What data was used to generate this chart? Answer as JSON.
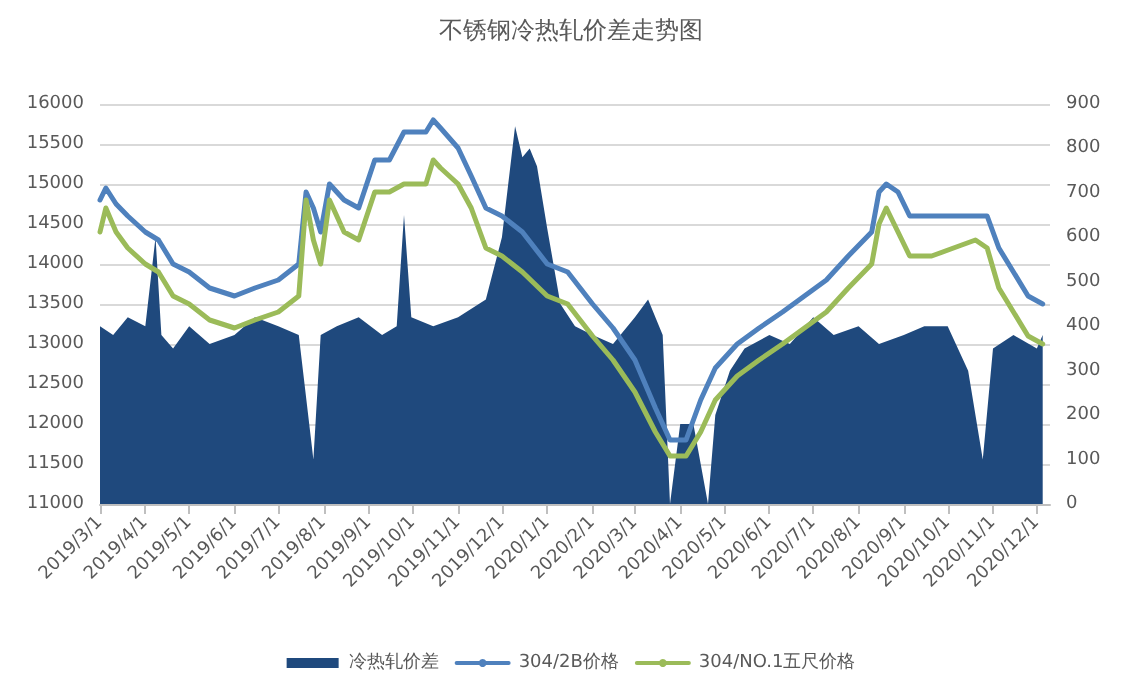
{
  "chart_data": {
    "type": "line",
    "title": "不锈钢冷热轧价差走势图",
    "xlim": [
      "2019-03-01",
      "2020-12-10"
    ],
    "xticks": [
      {
        "value": "2019-03-01",
        "label": "2019/3/1"
      },
      {
        "value": "2019-04-01",
        "label": "2019/4/1"
      },
      {
        "value": "2019-05-01",
        "label": "2019/5/1"
      },
      {
        "value": "2019-06-01",
        "label": "2019/6/1"
      },
      {
        "value": "2019-07-01",
        "label": "2019/7/1"
      },
      {
        "value": "2019-08-01",
        "label": "2019/8/1"
      },
      {
        "value": "2019-09-01",
        "label": "2019/9/1"
      },
      {
        "value": "2019-10-01",
        "label": "2019/10/1"
      },
      {
        "value": "2019-11-01",
        "label": "2019/11/1"
      },
      {
        "value": "2019-12-01",
        "label": "2019/12/1"
      },
      {
        "value": "2020-01-01",
        "label": "2020/1/1"
      },
      {
        "value": "2020-02-01",
        "label": "2020/2/1"
      },
      {
        "value": "2020-03-01",
        "label": "2020/3/1"
      },
      {
        "value": "2020-04-01",
        "label": "2020/4/1"
      },
      {
        "value": "2020-05-01",
        "label": "2020/5/1"
      },
      {
        "value": "2020-06-01",
        "label": "2020/6/1"
      },
      {
        "value": "2020-07-01",
        "label": "2020/7/1"
      },
      {
        "value": "2020-08-01",
        "label": "2020/8/1"
      },
      {
        "value": "2020-09-01",
        "label": "2020/9/1"
      },
      {
        "value": "2020-10-01",
        "label": "2020/10/1"
      },
      {
        "value": "2020-11-01",
        "label": "2020/11/1"
      },
      {
        "value": "2020-12-01",
        "label": "2020/12/1"
      }
    ],
    "ylim": [
      11000,
      16000
    ],
    "yticks": [
      11000,
      11500,
      12000,
      12500,
      13000,
      13500,
      14000,
      14500,
      15000,
      15500,
      16000
    ],
    "y2lim": [
      0,
      900
    ],
    "y2ticks": [
      0,
      100,
      200,
      300,
      400,
      500,
      600,
      700,
      800,
      900
    ],
    "grid": "y",
    "legend": "bottom",
    "marker": "none",
    "line_style": "solid",
    "series": [
      {
        "name": "冷热轧价差",
        "type": "area",
        "axis": "y2",
        "color": "#1f497d",
        "x": [
          "2019-03-01",
          "2019-03-10",
          "2019-03-20",
          "2019-04-01",
          "2019-04-08",
          "2019-04-12",
          "2019-04-20",
          "2019-05-01",
          "2019-05-15",
          "2019-06-01",
          "2019-06-15",
          "2019-07-01",
          "2019-07-15",
          "2019-07-25",
          "2019-07-30",
          "2019-08-10",
          "2019-08-25",
          "2019-09-10",
          "2019-09-20",
          "2019-09-25",
          "2019-09-30",
          "2019-10-15",
          "2019-11-01",
          "2019-11-20",
          "2019-12-01",
          "2019-12-10",
          "2019-12-15",
          "2019-12-20",
          "2019-12-25",
          "2020-01-01",
          "2020-01-10",
          "2020-01-20",
          "2020-02-01",
          "2020-02-15",
          "2020-03-01",
          "2020-03-10",
          "2020-03-20",
          "2020-03-25",
          "2020-04-01",
          "2020-04-10",
          "2020-04-20",
          "2020-04-25",
          "2020-05-05",
          "2020-05-15",
          "2020-06-01",
          "2020-06-15",
          "2020-07-01",
          "2020-07-15",
          "2020-08-01",
          "2020-08-15",
          "2020-09-01",
          "2020-09-15",
          "2020-10-01",
          "2020-10-15",
          "2020-10-25",
          "2020-11-01",
          "2020-11-15",
          "2020-12-01",
          "2020-12-05"
        ],
        "values": [
          400,
          380,
          420,
          400,
          600,
          380,
          350,
          400,
          360,
          380,
          420,
          400,
          380,
          100,
          380,
          400,
          420,
          380,
          400,
          650,
          420,
          400,
          420,
          460,
          600,
          850,
          780,
          800,
          760,
          620,
          450,
          400,
          380,
          360,
          420,
          460,
          380,
          0,
          180,
          180,
          0,
          200,
          300,
          350,
          380,
          360,
          420,
          380,
          400,
          360,
          380,
          400,
          400,
          300,
          100,
          350,
          380,
          350,
          380
        ]
      },
      {
        "name": "304/2B价格",
        "color": "#4f81bd",
        "x": [
          "2019-03-01",
          "2019-03-05",
          "2019-03-12",
          "2019-03-20",
          "2019-04-01",
          "2019-04-10",
          "2019-04-20",
          "2019-05-01",
          "2019-05-15",
          "2019-06-01",
          "2019-06-15",
          "2019-07-01",
          "2019-07-15",
          "2019-07-20",
          "2019-07-25",
          "2019-07-30",
          "2019-08-05",
          "2019-08-15",
          "2019-08-25",
          "2019-09-05",
          "2019-09-15",
          "2019-09-25",
          "2019-10-10",
          "2019-10-15",
          "2019-10-20",
          "2019-11-01",
          "2019-11-10",
          "2019-11-20",
          "2019-12-01",
          "2019-12-15",
          "2020-01-01",
          "2020-01-15",
          "2020-02-01",
          "2020-02-15",
          "2020-03-01",
          "2020-03-15",
          "2020-03-25",
          "2020-04-05",
          "2020-04-15",
          "2020-04-25",
          "2020-05-10",
          "2020-05-25",
          "2020-06-10",
          "2020-06-25",
          "2020-07-10",
          "2020-07-25",
          "2020-08-10",
          "2020-08-15",
          "2020-08-20",
          "2020-08-28",
          "2020-09-05",
          "2020-09-20",
          "2020-10-05",
          "2020-10-20",
          "2020-10-28",
          "2020-11-05",
          "2020-11-15",
          "2020-11-25",
          "2020-12-05"
        ],
        "values": [
          14800,
          14950,
          14750,
          14600,
          14400,
          14300,
          14000,
          13900,
          13700,
          13600,
          13700,
          13800,
          14000,
          14900,
          14700,
          14400,
          15000,
          14800,
          14700,
          15300,
          15300,
          15650,
          15650,
          15800,
          15700,
          15450,
          15100,
          14700,
          14600,
          14400,
          14000,
          13900,
          13500,
          13200,
          12800,
          12200,
          11800,
          11800,
          12300,
          12700,
          13000,
          13200,
          13400,
          13600,
          13800,
          14100,
          14400,
          14900,
          15000,
          14900,
          14600,
          14600,
          14600,
          14600,
          14600,
          14200,
          13900,
          13600,
          13500
        ]
      },
      {
        "name": "304/NO.1五尺价格",
        "color": "#9bbb59",
        "x": [
          "2019-03-01",
          "2019-03-05",
          "2019-03-12",
          "2019-03-20",
          "2019-04-01",
          "2019-04-10",
          "2019-04-20",
          "2019-05-01",
          "2019-05-15",
          "2019-06-01",
          "2019-06-15",
          "2019-07-01",
          "2019-07-15",
          "2019-07-20",
          "2019-07-25",
          "2019-07-30",
          "2019-08-05",
          "2019-08-15",
          "2019-08-25",
          "2019-09-05",
          "2019-09-15",
          "2019-09-25",
          "2019-10-10",
          "2019-10-15",
          "2019-10-20",
          "2019-11-01",
          "2019-11-10",
          "2019-11-20",
          "2019-12-01",
          "2019-12-15",
          "2020-01-01",
          "2020-01-15",
          "2020-02-01",
          "2020-02-15",
          "2020-03-01",
          "2020-03-15",
          "2020-03-25",
          "2020-04-05",
          "2020-04-15",
          "2020-04-25",
          "2020-05-10",
          "2020-05-25",
          "2020-06-10",
          "2020-06-25",
          "2020-07-10",
          "2020-07-25",
          "2020-08-10",
          "2020-08-15",
          "2020-08-20",
          "2020-08-28",
          "2020-09-05",
          "2020-09-20",
          "2020-10-05",
          "2020-10-20",
          "2020-10-28",
          "2020-11-05",
          "2020-11-15",
          "2020-11-25",
          "2020-12-05"
        ],
        "values": [
          14400,
          14700,
          14400,
          14200,
          14000,
          13900,
          13600,
          13500,
          13300,
          13200,
          13300,
          13400,
          13600,
          14800,
          14300,
          14000,
          14800,
          14400,
          14300,
          14900,
          14900,
          15000,
          15000,
          15300,
          15200,
          15000,
          14700,
          14200,
          14100,
          13900,
          13600,
          13500,
          13100,
          12800,
          12400,
          11900,
          11600,
          11600,
          11900,
          12300,
          12600,
          12800,
          13000,
          13200,
          13400,
          13700,
          14000,
          14500,
          14700,
          14400,
          14100,
          14100,
          14200,
          14300,
          14200,
          13700,
          13400,
          13100,
          13000
        ]
      }
    ]
  }
}
